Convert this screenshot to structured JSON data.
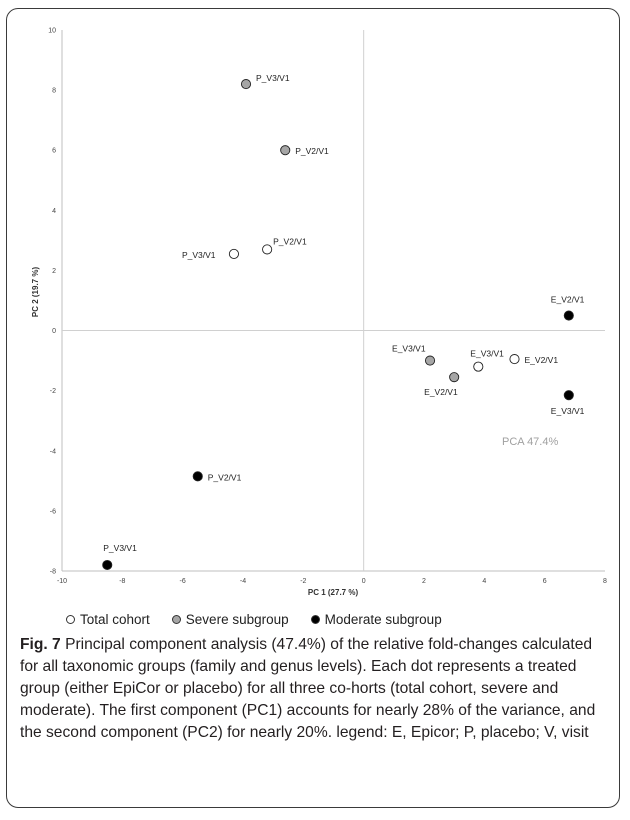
{
  "chart_data": {
    "type": "scatter",
    "title": "",
    "xlabel": "PC 1 (27.7 %)",
    "ylabel": "PC 2 (19.7 %)",
    "xlim": [
      -10,
      8
    ],
    "ylim": [
      -8,
      10
    ],
    "xticks": [
      -10,
      -8,
      -6,
      -4,
      -2,
      0,
      2,
      4,
      6,
      8
    ],
    "yticks": [
      -8,
      -6,
      -4,
      -2,
      0,
      2,
      4,
      6,
      8,
      10
    ],
    "annotation": "PCA 47.4%",
    "grid": false,
    "legend_placement": "bottom",
    "series": [
      {
        "name": "Total cohort",
        "color": "#ffffff",
        "points": [
          {
            "x": -4.3,
            "y": 2.55,
            "label": "P_V3/V1"
          },
          {
            "x": -3.2,
            "y": 2.7,
            "label": "P_V2/V1"
          },
          {
            "x": 3.8,
            "y": -1.2,
            "label": "E_V3/V1"
          },
          {
            "x": 5.0,
            "y": -0.95,
            "label": "E_V2/V1"
          }
        ]
      },
      {
        "name": "Severe subgroup",
        "color": "#a6a6a6",
        "points": [
          {
            "x": -3.9,
            "y": 8.2,
            "label": "P_V3/V1"
          },
          {
            "x": -2.6,
            "y": 6.0,
            "label": "P_V2/V1"
          },
          {
            "x": 2.2,
            "y": -1.0,
            "label": "E_V3/V1"
          },
          {
            "x": 3.0,
            "y": -1.55,
            "label": "E_V2/V1"
          }
        ]
      },
      {
        "name": "Moderate subgroup",
        "color": "#000000",
        "points": [
          {
            "x": 6.8,
            "y": 0.5,
            "label": "E_V2/V1"
          },
          {
            "x": 6.8,
            "y": -2.15,
            "label": "E_V3/V1"
          },
          {
            "x": -5.5,
            "y": -4.85,
            "label": "P_V2/V1"
          },
          {
            "x": -8.5,
            "y": -7.8,
            "label": "P_V3/V1"
          }
        ]
      }
    ]
  },
  "legend": {
    "items": [
      {
        "label": "Total cohort",
        "color": "#ffffff"
      },
      {
        "label": "Severe subgroup",
        "color": "#a6a6a6"
      },
      {
        "label": "Moderate subgroup",
        "color": "#000000"
      }
    ]
  },
  "caption": {
    "label": "Fig. 7",
    "text": "Principal component analysis (47.4%) of the relative fold-changes calculated for all taxonomic groups (family and genus levels). Each dot represents a treated group (either EpiCor or placebo) for all three co-horts (total cohort, severe and moderate). The first component (PC1) accounts for nearly 28% of the variance, and the second component (PC2) for nearly 20%. legend: E, Epicor; P, placebo; V, visit"
  }
}
